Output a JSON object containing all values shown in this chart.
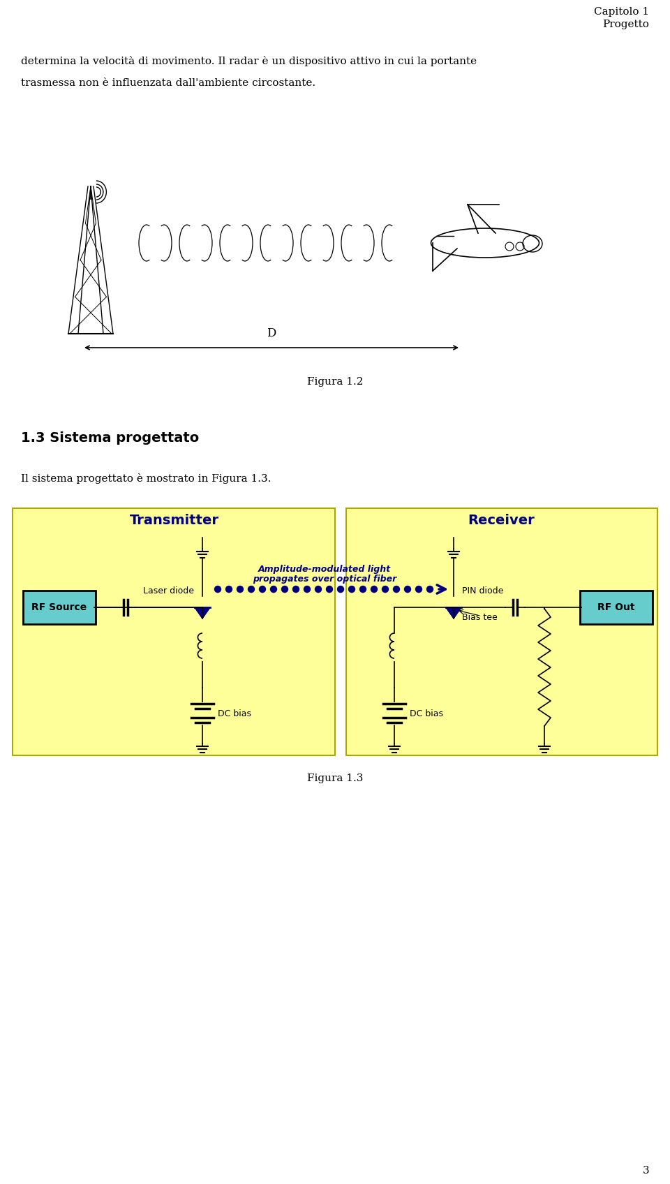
{
  "page_width": 9.6,
  "page_height": 16.96,
  "bg_color": "#ffffff",
  "header_right": "Capitolo 1\nProgetto",
  "header_fontsize": 11,
  "para1_line1": "determina la velocità di movimento. Il radar è un dispositivo attivo in cui la portante",
  "para1_line2": "trasmessa non è influenzata dall'ambiente circostante.",
  "body_fontsize": 11,
  "fig1_caption": "Figura 1.2",
  "section_title": "1.3 Sistema progettato",
  "section_fontsize": 14,
  "para2": "Il sistema progettato è mostrato in Figura 1.3.",
  "fig2_caption": "Figura 1.3",
  "page_num": "3",
  "transmitter_label": "Transmitter",
  "receiver_label": "Receiver",
  "rf_source_label": "RF Source",
  "rf_out_label": "RF Out",
  "laser_diode_label": "Laser diode",
  "pin_diode_label": "PIN diode",
  "bias_tee_label": "Bias tee",
  "dc_bias1_label": "DC bias",
  "dc_bias2_label": "DC bias",
  "fiber_text_line1": "Amplitude-modulated light",
  "fiber_text_line2": "propagates over optical fiber",
  "panel_bg": "#ffff99",
  "panel_border": "#aaaa00",
  "rf_box_color": "#66cccc",
  "diode_color": "#000080",
  "fiber_text_color": "#000080",
  "dot_color": "#000080",
  "arrow_color": "#000080",
  "title_color": "#000080"
}
